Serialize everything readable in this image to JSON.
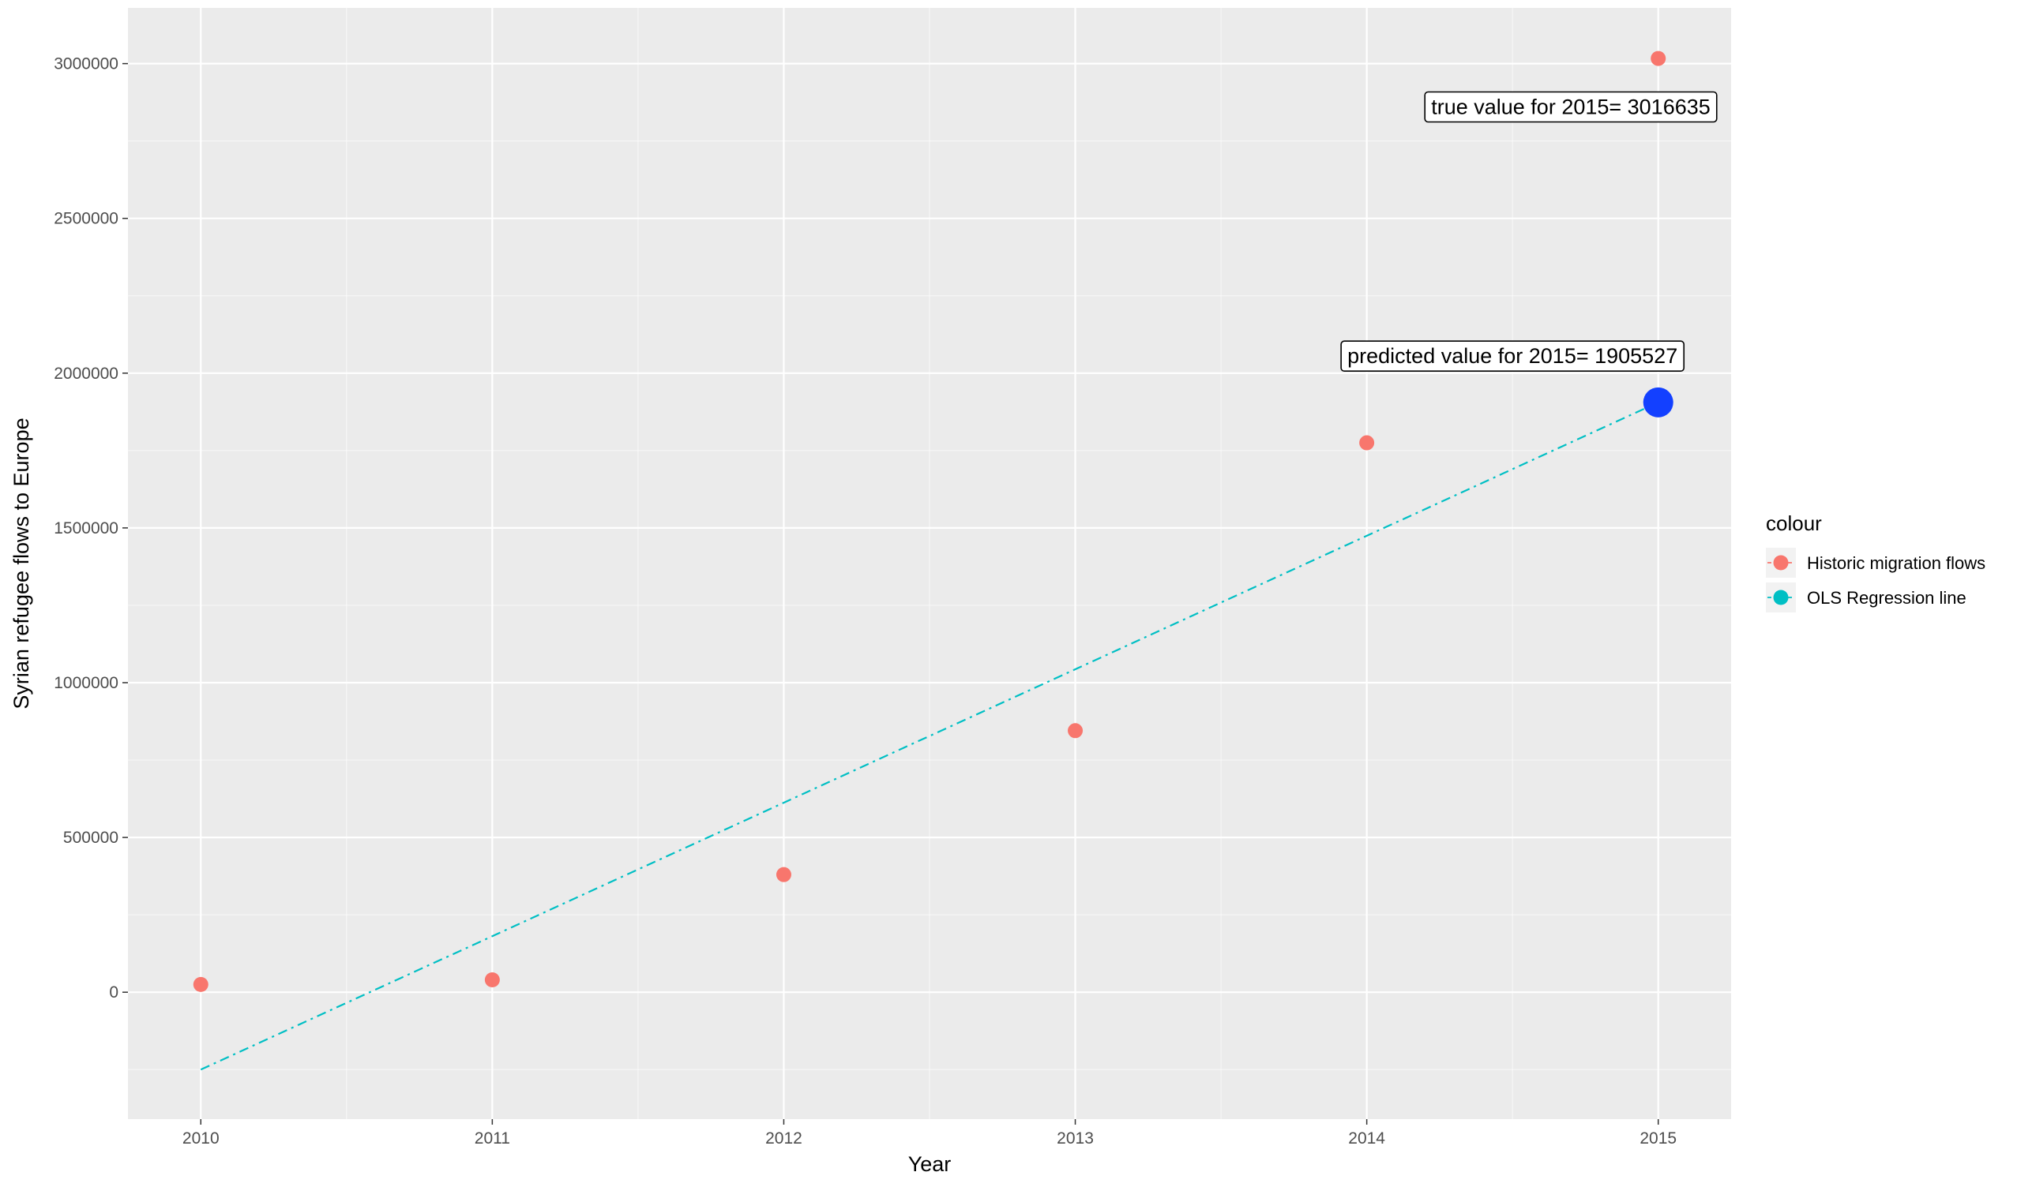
{
  "chart_data": {
    "type": "scatter",
    "xlabel": "Year",
    "ylabel": "Syrian refugee flows to Europe",
    "xlim": [
      2009.75,
      2015.25
    ],
    "ylim": [
      -410000,
      3180000
    ],
    "x_ticks": [
      2010,
      2011,
      2012,
      2013,
      2014,
      2015
    ],
    "y_ticks": [
      0,
      500000,
      1000000,
      1500000,
      2000000,
      2500000,
      3000000
    ],
    "x_tick_labels": [
      "2010",
      "2011",
      "2012",
      "2013",
      "2014",
      "2015"
    ],
    "y_tick_labels": [
      "0",
      "500000",
      "1000000",
      "1500000",
      "2000000",
      "2500000",
      "3000000"
    ],
    "grid": true,
    "legend": {
      "title": "colour",
      "position": "right",
      "entries": [
        {
          "label": "Historic migration flows",
          "color": "#F8766D"
        },
        {
          "label": "OLS Regression line",
          "color": "#00BFC4"
        }
      ]
    },
    "series": [
      {
        "name": "Historic migration flows",
        "type": "scatter",
        "color": "#F8766D",
        "x": [
          2010,
          2011,
          2012,
          2013,
          2014,
          2015
        ],
        "y": [
          25000,
          40000,
          380000,
          845000,
          1775000,
          3016635
        ]
      },
      {
        "name": "OLS Regression line",
        "type": "line",
        "color": "#00BFC4",
        "dash": "dot-dash",
        "x": [
          2010,
          2015
        ],
        "y": [
          -250000,
          1905527
        ]
      }
    ],
    "highlight": {
      "x": 2015,
      "y": 1905527,
      "color": "#1340FF"
    },
    "annotations": [
      {
        "text": "true value for 2015= 3016635",
        "x": 2014.7,
        "y": 2860000,
        "anchor": "middle"
      },
      {
        "text": "predicted value for 2015= 1905527",
        "x": 2014.5,
        "y": 2055000,
        "anchor": "middle"
      }
    ],
    "background": "#EBEBEB",
    "grid_color": "#FFFFFF"
  }
}
